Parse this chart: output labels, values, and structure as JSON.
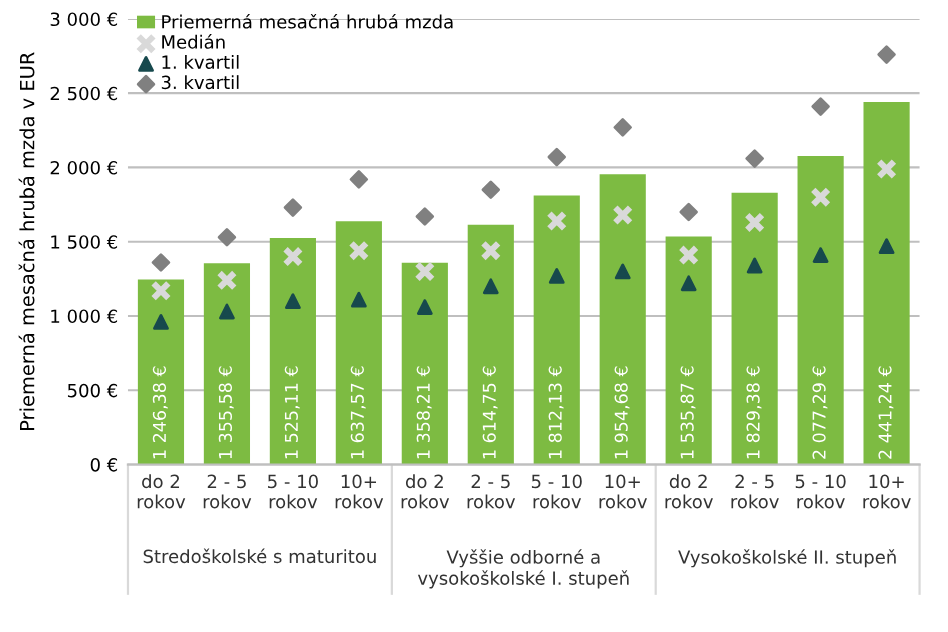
{
  "chart_data": {
    "type": "bar",
    "ylabel": "Priemerná mesačná hrubá mzda v EUR",
    "categories": [
      "do 2\nrokov",
      "2 - 5\nrokov",
      "5 - 10\nrokov",
      "10+\nrokov",
      "do 2\nrokov",
      "2 - 5\nrokov",
      "5 - 10\nrokov",
      "10+\nrokov",
      "do 2\nrokov",
      "2 - 5\nrokov",
      "5 - 10\nrokov",
      "10+\nrokov"
    ],
    "series": [
      {
        "name": "Priemerná mesačná hrubá mzda",
        "color": "#7dbb42",
        "values": [
          1246.38,
          1355.58,
          1525.11,
          1637.57,
          1358.21,
          1614.75,
          1812.13,
          1954.68,
          1535.87,
          1829.38,
          2077.29,
          2441.24
        ],
        "value_labels": [
          "1 246,38 €",
          "1 355,58 €",
          "1 525,11 €",
          "1 637,57 €",
          "1 358,21 €",
          "1 614,75 €",
          "1 812,13 €",
          "1 954,68 €",
          "1 535,87 €",
          "1 829,38 €",
          "2 077,29 €",
          "2 441,24 €"
        ]
      },
      {
        "name": "Medián",
        "type": "scatter",
        "marker": "cross",
        "color": "#d9d9d9",
        "values": [
          1170,
          1240,
          1400,
          1440,
          1300,
          1440,
          1640,
          1680,
          1410,
          1630,
          1800,
          1990
        ]
      },
      {
        "name": "1. kvartil",
        "type": "scatter",
        "marker": "triangle",
        "color": "#17494d",
        "values": [
          960,
          1030,
          1100,
          1110,
          1060,
          1200,
          1270,
          1300,
          1220,
          1340,
          1410,
          1470
        ]
      },
      {
        "name": "3. kvartil",
        "type": "scatter",
        "marker": "diamond",
        "color": "#808080",
        "values": [
          1360,
          1530,
          1730,
          1920,
          1670,
          1850,
          2070,
          2270,
          1700,
          2060,
          2410,
          2760
        ]
      }
    ],
    "annotations": [
      "Stredoškolské s maturitou",
      "Vyššie odborné a\nvysokoškolské I. stupeň",
      "Vysokoškolské II. stupeň"
    ],
    "ylim": [
      0,
      3000
    ],
    "yticks": [
      {
        "value": 0,
        "label": "0 €"
      },
      {
        "value": 500,
        "label": "500 €"
      },
      {
        "value": 1000,
        "label": "1 000 €"
      },
      {
        "value": 1500,
        "label": "1 500 €"
      },
      {
        "value": 2000,
        "label": "2 000 €"
      },
      {
        "value": 2500,
        "label": "2 500 €"
      },
      {
        "value": 3000,
        "label": "3 000 €"
      }
    ],
    "grid": "y",
    "legend": "top left"
  }
}
